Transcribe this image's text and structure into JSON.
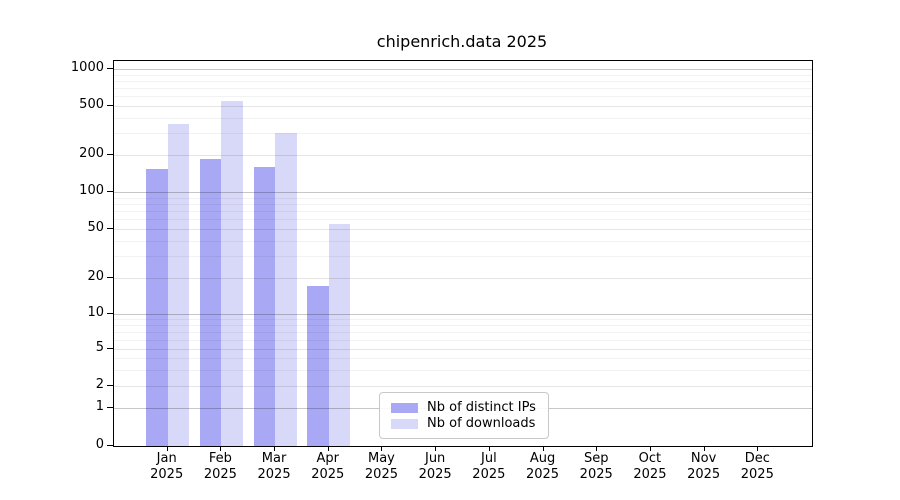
{
  "title": "chipenrich.data 2025",
  "legend": {
    "items": [
      {
        "label": "Nb of distinct IPs",
        "color": "#a8a8f4"
      },
      {
        "label": "Nb of downloads",
        "color": "#d8d8f8"
      }
    ]
  },
  "chart_data": {
    "type": "bar",
    "title": "chipenrich.data 2025",
    "categories": [
      "Jan 2025",
      "Feb 2025",
      "Mar 2025",
      "Apr 2025",
      "May 2025",
      "Jun 2025",
      "Jul 2025",
      "Aug 2025",
      "Sep 2025",
      "Oct 2025",
      "Nov 2025",
      "Dec 2025"
    ],
    "series": [
      {
        "name": "Nb of distinct IPs",
        "color": "#a8a8f4",
        "values": [
          155,
          184,
          161,
          17,
          0,
          0,
          0,
          0,
          0,
          0,
          0,
          0
        ]
      },
      {
        "name": "Nb of downloads",
        "color": "#d8d8f8",
        "values": [
          355,
          550,
          300,
          55,
          0,
          0,
          0,
          0,
          0,
          0,
          0,
          0
        ]
      }
    ],
    "ylabel": "",
    "xlabel": "",
    "y_ticks": [
      0,
      1,
      2,
      5,
      10,
      20,
      50,
      100,
      200,
      500,
      1000
    ],
    "y_scale": "pseudo-log (1-2-5 ticks with 0 baseline)",
    "ylim": [
      0,
      1000
    ],
    "grid": "horizontal major and minor gridlines",
    "legend_position": "inside lower-center-left"
  }
}
